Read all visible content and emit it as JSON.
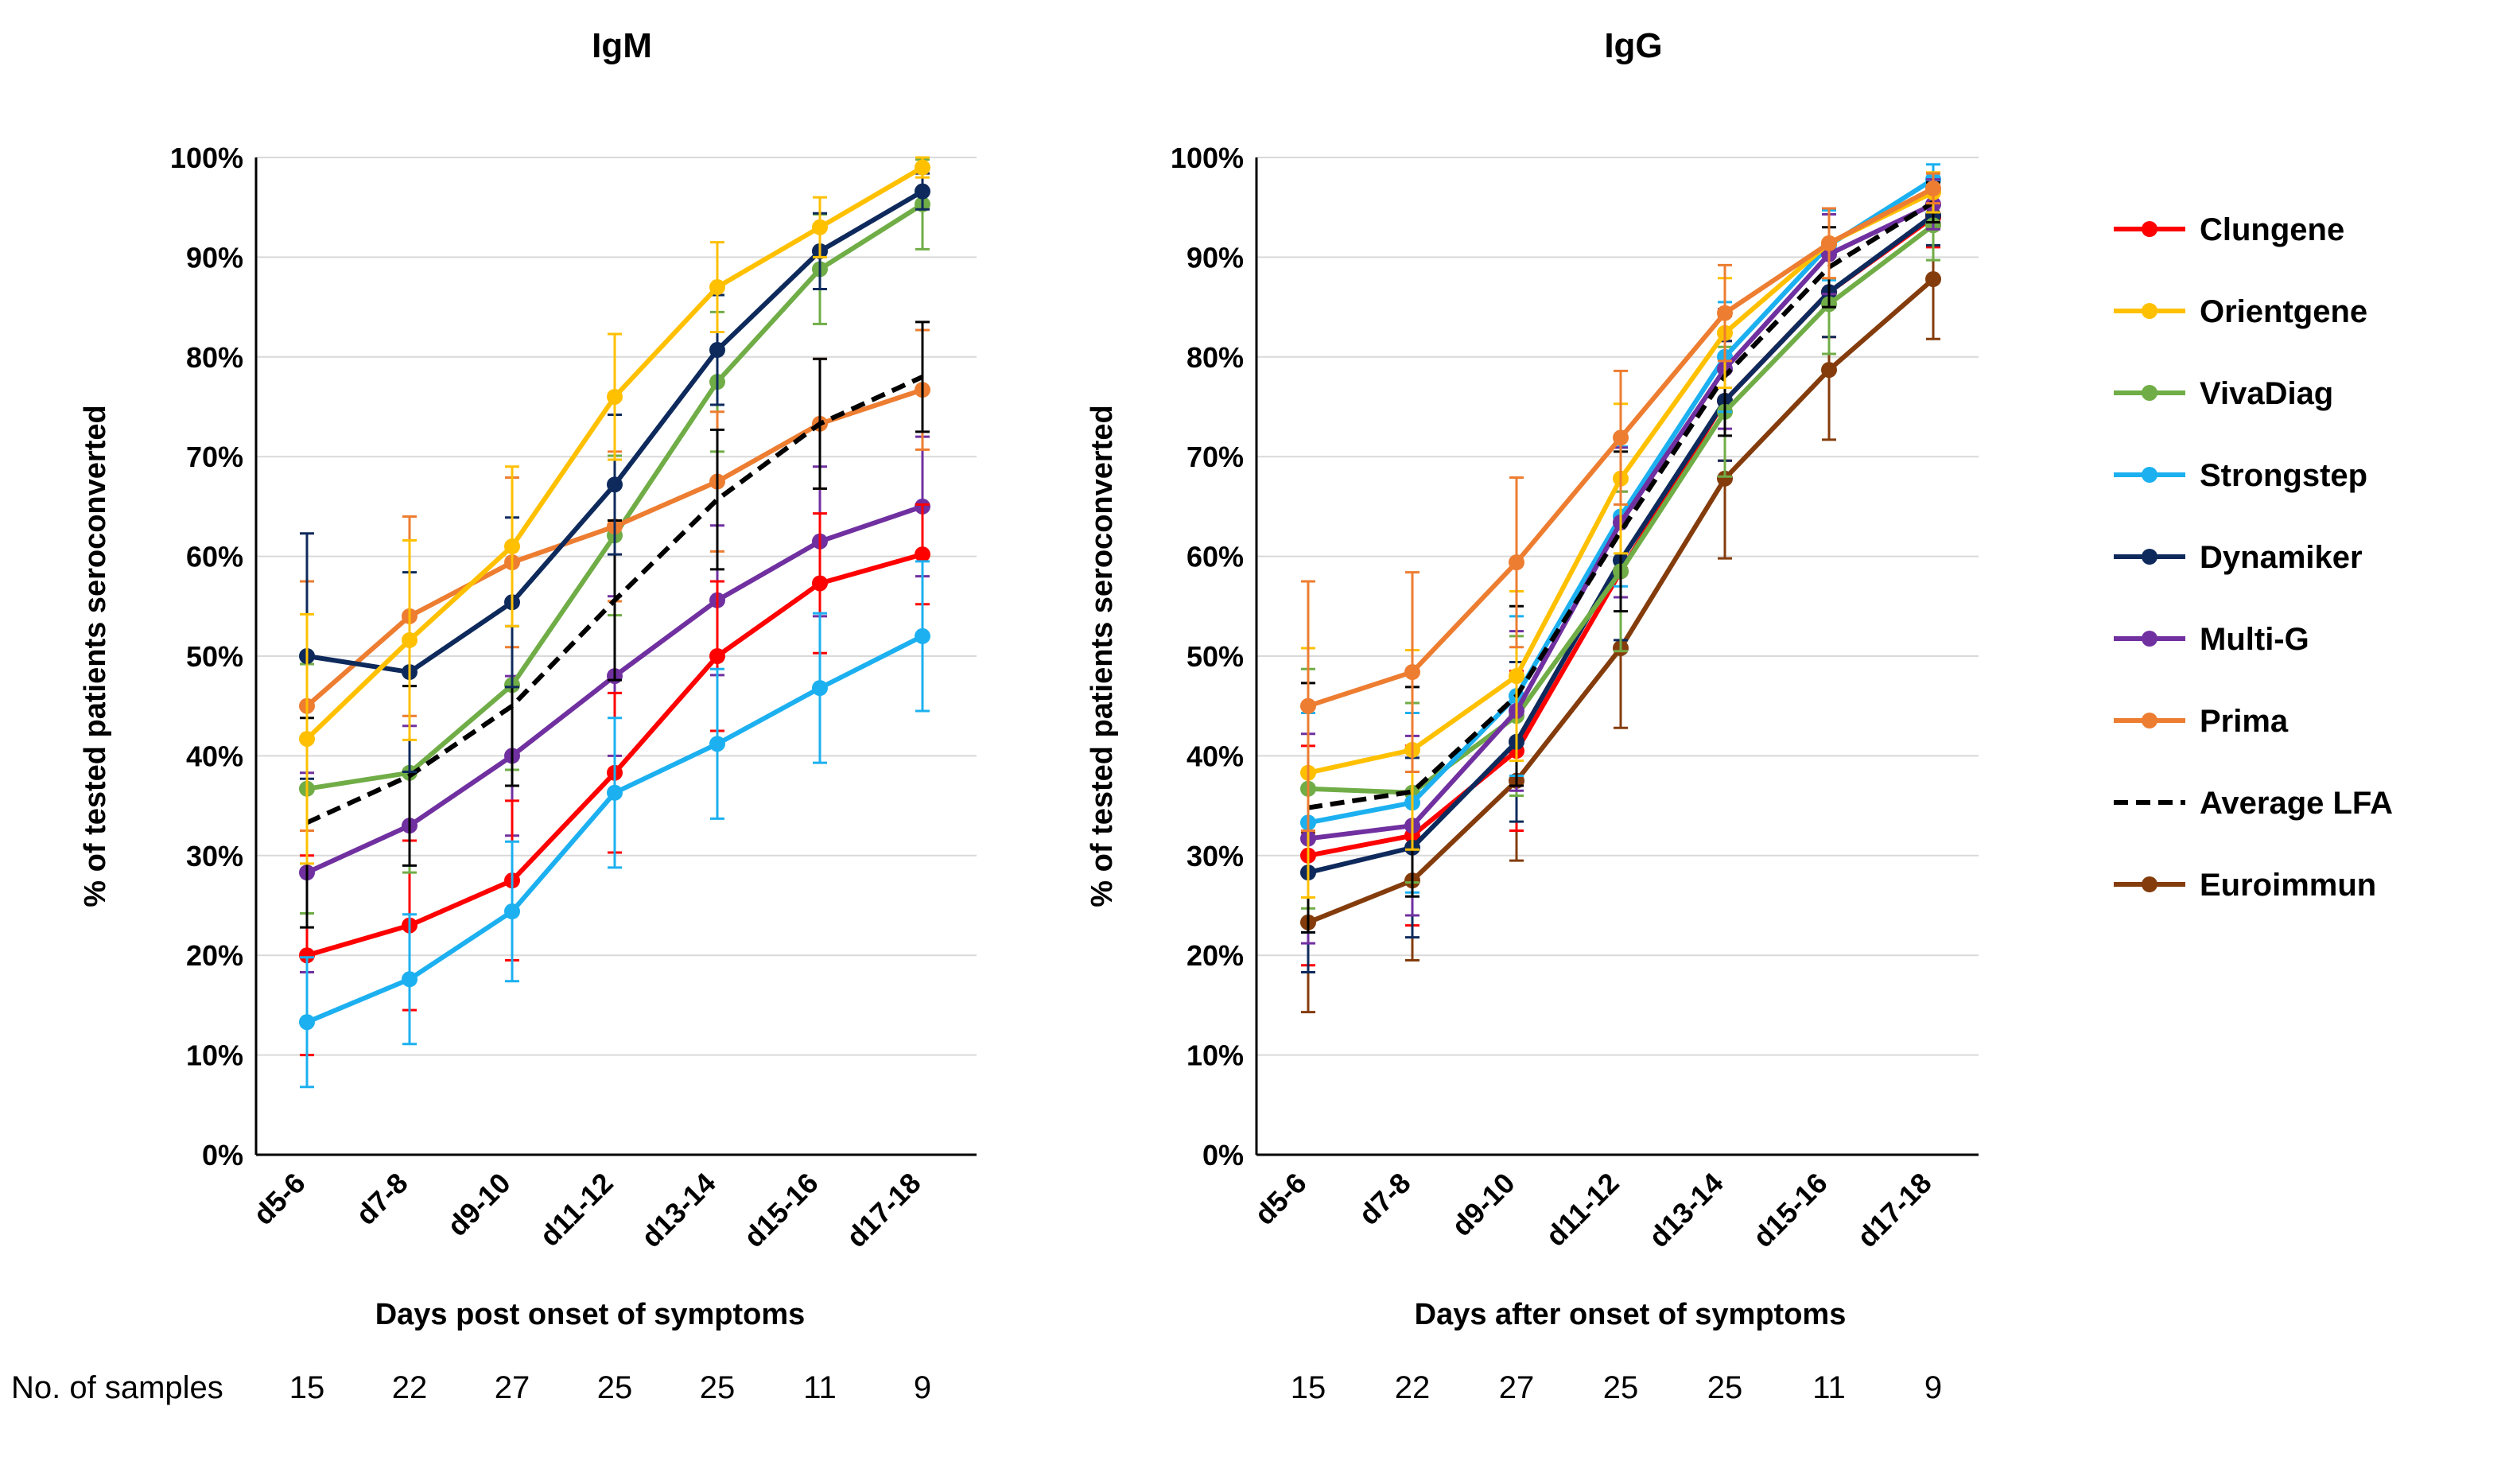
{
  "samples_label": "No. of samples",
  "legend": {
    "order": [
      "Clungene",
      "Orientgene",
      "VivaDiag",
      "Strongstep",
      "Dynamiker",
      "Multi-G",
      "Prima",
      "Average LFA",
      "Euroimmun"
    ]
  },
  "chart_data": [
    {
      "type": "line",
      "title": "IgM",
      "xlabel": "Days post onset of symptoms",
      "ylabel": "% of tested patients seroconverted",
      "categories": [
        "d5-6",
        "d7-8",
        "d9-10",
        "d11-12",
        "d13-14",
        "d15-16",
        "d17-18"
      ],
      "yticks": [
        "0%",
        "10%",
        "20%",
        "30%",
        "40%",
        "50%",
        "60%",
        "70%",
        "80%",
        "90%",
        "100%"
      ],
      "ylim": [
        0,
        100
      ],
      "grid": true,
      "error_bars": true,
      "sample_counts": [
        "15",
        "22",
        "27",
        "25",
        "25",
        "11",
        "9"
      ],
      "series": [
        {
          "name": "Multi-G",
          "color": "#7030A0",
          "dashed": false,
          "values": [
            28.3,
            33,
            40,
            48,
            55.6,
            61.5,
            65
          ],
          "err": [
            10,
            10,
            8,
            8,
            7.5,
            7.5,
            7
          ]
        },
        {
          "name": "Clungene",
          "color": "#FF0000",
          "dashed": false,
          "values": [
            20,
            23,
            27.5,
            38.3,
            50,
            57.3,
            60.2
          ],
          "err": [
            10,
            8.5,
            8,
            8,
            7.5,
            7,
            5
          ]
        },
        {
          "name": "Strongstep",
          "color": "#1CB0F0",
          "dashed": false,
          "values": [
            13.3,
            17.6,
            24.4,
            36.3,
            41.2,
            46.8,
            52
          ],
          "err": [
            6.5,
            6.5,
            7,
            7.5,
            7.5,
            7.5,
            7.5
          ]
        },
        {
          "name": "VivaDiag",
          "color": "#70AD47",
          "dashed": false,
          "values": [
            36.7,
            38.3,
            47.1,
            62.1,
            77.5,
            88.8,
            95.3
          ],
          "err": [
            12.5,
            10,
            8.5,
            8,
            7,
            5.5,
            4.5
          ]
        },
        {
          "name": "Prima",
          "color": "#ED7D31",
          "dashed": false,
          "values": [
            45,
            54,
            59.4,
            63,
            67.5,
            73.3,
            76.7
          ],
          "err": [
            12.5,
            10,
            8.5,
            7.5,
            7,
            6.5,
            6
          ]
        },
        {
          "name": "Average LFA",
          "color": "#000000",
          "dashed": true,
          "values": [
            33.3,
            38,
            45,
            55.6,
            65.7,
            73.3,
            78
          ],
          "err": [
            10.5,
            9,
            8,
            8,
            7,
            6.5,
            5.5
          ]
        },
        {
          "name": "Dynamiker",
          "color": "#0E2A5C",
          "dashed": false,
          "values": [
            50,
            48.4,
            55.4,
            67.2,
            80.7,
            90.6,
            96.6
          ],
          "err": [
            12.3,
            10,
            8.5,
            7,
            5.5,
            3.8,
            1.8
          ]
        },
        {
          "name": "Orientgene",
          "color": "#FFC000",
          "dashed": false,
          "values": [
            41.7,
            51.6,
            61,
            76,
            87,
            93,
            99
          ],
          "err": [
            12.5,
            10,
            8,
            6.3,
            4.5,
            3,
            1
          ]
        }
      ]
    },
    {
      "type": "line",
      "title": "IgG",
      "xlabel": "Days after onset of symptoms",
      "ylabel": "% of tested patients seroconverted",
      "categories": [
        "d5-6",
        "d7-8",
        "d9-10",
        "d11-12",
        "d13-14",
        "d15-16",
        "d17-18"
      ],
      "yticks": [
        "0%",
        "10%",
        "20%",
        "30%",
        "40%",
        "50%",
        "60%",
        "70%",
        "80%",
        "90%",
        "100%"
      ],
      "ylim": [
        0,
        100
      ],
      "grid": true,
      "error_bars": true,
      "sample_counts": [
        "15",
        "22",
        "27",
        "25",
        "25",
        "11",
        "9"
      ],
      "series": [
        {
          "name": "Euroimmun",
          "color": "#843C0C",
          "dashed": false,
          "values": [
            23.3,
            27.5,
            37.5,
            50.8,
            67.8,
            78.7,
            87.8
          ],
          "err": [
            9,
            8,
            8,
            8,
            8,
            7,
            6
          ]
        },
        {
          "name": "Clungene",
          "color": "#FF0000",
          "dashed": false,
          "values": [
            30,
            32,
            40.5,
            58.5,
            75.6,
            86.5,
            94
          ],
          "err": [
            11,
            9,
            8,
            8,
            6,
            4.5,
            3
          ]
        },
        {
          "name": "Dynamiker",
          "color": "#0E2A5C",
          "dashed": false,
          "values": [
            28.3,
            30.8,
            41.4,
            59.6,
            75.6,
            86.5,
            94.2
          ],
          "err": [
            10,
            9,
            8,
            8,
            6,
            4.5,
            3
          ]
        },
        {
          "name": "VivaDiag",
          "color": "#70AD47",
          "dashed": false,
          "values": [
            36.7,
            36.3,
            44,
            58.5,
            74.5,
            85.3,
            93.2
          ],
          "err": [
            12,
            9,
            8,
            8,
            6.5,
            5,
            3.5
          ]
        },
        {
          "name": "Strongstep",
          "color": "#1CB0F0",
          "dashed": false,
          "values": [
            33.3,
            35.3,
            46,
            64,
            80,
            91.2,
            97.8
          ],
          "err": [
            11,
            9,
            8,
            7,
            5.5,
            3.5,
            1.5
          ]
        },
        {
          "name": "Multi-G",
          "color": "#7030A0",
          "dashed": false,
          "values": [
            31.7,
            33,
            44.5,
            63.4,
            78.8,
            90.3,
            95.3
          ],
          "err": [
            10.5,
            9,
            8,
            7.5,
            6,
            4,
            2.5
          ]
        },
        {
          "name": "Average LFA",
          "color": "#000000",
          "dashed": true,
          "values": [
            34.8,
            36.4,
            46,
            62.5,
            78.1,
            89,
            95.5
          ],
          "err": [
            12.5,
            10.5,
            9,
            8,
            6,
            4,
            2
          ]
        },
        {
          "name": "Orientgene",
          "color": "#FFC000",
          "dashed": false,
          "values": [
            38.3,
            40.6,
            48,
            67.8,
            82.4,
            91.4,
            96.5
          ],
          "err": [
            12.5,
            10,
            8.5,
            7.5,
            5.5,
            3.5,
            2
          ]
        },
        {
          "name": "Prima",
          "color": "#ED7D31",
          "dashed": false,
          "values": [
            45,
            48.4,
            59.4,
            71.9,
            84.4,
            91.4,
            96.9
          ],
          "err": [
            12.5,
            10,
            8.5,
            6.7,
            4.8,
            3.5,
            1.5
          ]
        }
      ]
    }
  ]
}
